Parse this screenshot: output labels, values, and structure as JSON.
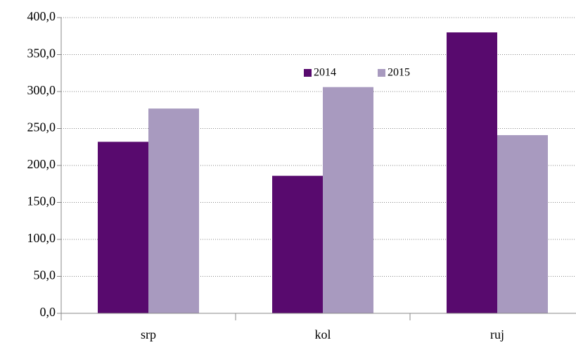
{
  "chart_data": {
    "type": "bar",
    "categories": [
      "srp",
      "kol",
      "ruj"
    ],
    "series": [
      {
        "name": "2014",
        "color": "#580a6e",
        "values": [
          232,
          186,
          380
        ]
      },
      {
        "name": "2015",
        "color": "#a89abf",
        "values": [
          277,
          306,
          241
        ]
      }
    ],
    "ylim": [
      0,
      400
    ],
    "yticks": [
      {
        "value": 0,
        "label": "0,0"
      },
      {
        "value": 50,
        "label": "50,0"
      },
      {
        "value": 100,
        "label": "100,0"
      },
      {
        "value": 150,
        "label": "150,0"
      },
      {
        "value": 200,
        "label": "200,0"
      },
      {
        "value": 250,
        "label": "250,0"
      },
      {
        "value": 300,
        "label": "300,0"
      },
      {
        "value": 350,
        "label": "350,0"
      },
      {
        "value": 400,
        "label": "400,0"
      }
    ],
    "grid": true,
    "legend": "top"
  }
}
